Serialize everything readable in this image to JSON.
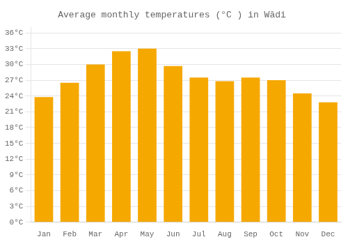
{
  "chart_data": {
    "type": "bar",
    "title": "Average monthly temperatures (°C ) in Wādi",
    "categories": [
      "Jan",
      "Feb",
      "Mar",
      "Apr",
      "May",
      "Jun",
      "Jul",
      "Aug",
      "Sep",
      "Oct",
      "Nov",
      "Dec"
    ],
    "values": [
      23.8,
      26.5,
      30.0,
      32.5,
      33.0,
      29.7,
      27.5,
      26.8,
      27.5,
      27.0,
      24.5,
      22.8
    ],
    "color": "#F5A800",
    "ylim": [
      0,
      37
    ],
    "yticks": [
      {
        "value": 0,
        "label": "0°C"
      },
      {
        "value": 3,
        "label": "3°C"
      },
      {
        "value": 6,
        "label": "6°C"
      },
      {
        "value": 9,
        "label": "9°C"
      },
      {
        "value": 12,
        "label": "12°C"
      },
      {
        "value": 15,
        "label": "15°C"
      },
      {
        "value": 18,
        "label": "18°C"
      },
      {
        "value": 21,
        "label": "21°C"
      },
      {
        "value": 24,
        "label": "24°C"
      },
      {
        "value": 27,
        "label": "27°C"
      },
      {
        "value": 30,
        "label": "30°C"
      },
      {
        "value": 33,
        "label": "33°C"
      },
      {
        "value": 36,
        "label": "36°C"
      }
    ],
    "grid": true
  }
}
